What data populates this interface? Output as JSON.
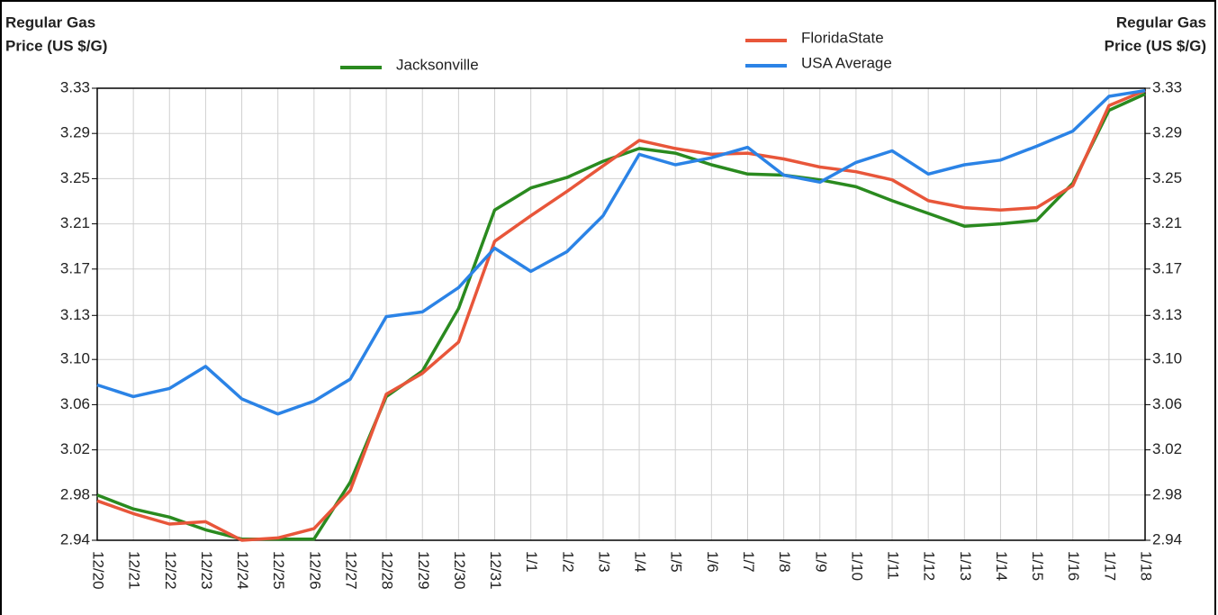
{
  "chart_data": {
    "type": "line",
    "y_label": [
      "Regular Gas",
      "Price (US $/G)"
    ],
    "y2_label": [
      "Regular Gas",
      "Price (US $/G)"
    ],
    "categories": [
      "12/20",
      "12/21",
      "12/22",
      "12/23",
      "12/24",
      "12/25",
      "12/26",
      "12/27",
      "12/28",
      "12/29",
      "12/30",
      "12/31",
      "1/1",
      "1/2",
      "1/3",
      "1/4",
      "1/5",
      "1/6",
      "1/7",
      "1/8",
      "1/9",
      "1/10",
      "1/11",
      "1/12",
      "1/13",
      "1/14",
      "1/15",
      "1/16",
      "1/17",
      "1/18"
    ],
    "series": [
      {
        "name": "Jacksonville",
        "color": "#2a8a1f",
        "values": [
          2.979,
          2.967,
          2.96,
          2.949,
          2.941,
          2.941,
          2.941,
          2.99,
          3.064,
          3.086,
          3.14,
          3.225,
          3.244,
          3.253,
          3.267,
          3.278,
          3.274,
          3.264,
          3.256,
          3.255,
          3.251,
          3.245,
          3.233,
          3.222,
          3.211,
          3.213,
          3.216,
          3.248,
          3.311,
          3.325
        ]
      },
      {
        "name": "FloridaState",
        "color": "#e8563a",
        "values": [
          2.974,
          2.963,
          2.954,
          2.956,
          2.94,
          2.942,
          2.95,
          2.983,
          3.066,
          3.084,
          3.111,
          3.198,
          3.22,
          3.241,
          3.263,
          3.285,
          3.278,
          3.273,
          3.274,
          3.269,
          3.262,
          3.258,
          3.251,
          3.233,
          3.227,
          3.225,
          3.227,
          3.246,
          3.315,
          3.328
        ]
      },
      {
        "name": "USA Average",
        "color": "#2b83e6",
        "values": [
          3.074,
          3.064,
          3.071,
          3.09,
          3.062,
          3.049,
          3.06,
          3.079,
          3.133,
          3.137,
          3.158,
          3.192,
          3.172,
          3.189,
          3.22,
          3.273,
          3.264,
          3.27,
          3.279,
          3.255,
          3.249,
          3.266,
          3.276,
          3.256,
          3.264,
          3.268,
          3.28,
          3.293,
          3.323,
          3.328
        ]
      }
    ],
    "ylim": [
      2.94,
      3.33
    ],
    "yticks": [
      2.94,
      {
        "value": 2.979,
        "label": "2.98"
      },
      {
        "value": 3.018,
        "label": "3.02"
      },
      {
        "value": 3.057,
        "label": "3.06"
      },
      {
        "value": 3.096,
        "label": "3.10"
      },
      {
        "value": 3.134,
        "label": "3.13"
      },
      {
        "value": 3.174,
        "label": "3.17"
      },
      {
        "value": 3.213,
        "label": "3.21"
      },
      {
        "value": 3.252,
        "label": "3.25"
      },
      {
        "value": 3.291,
        "label": "3.29"
      },
      3.33
    ],
    "y2lim": [
      2.94,
      3.33
    ],
    "y2ticks": [
      2.94,
      {
        "value": 2.979,
        "label": "2.98"
      },
      {
        "value": 3.018,
        "label": "3.02"
      },
      {
        "value": 3.057,
        "label": "3.06"
      },
      {
        "value": 3.096,
        "label": "3.10"
      },
      {
        "value": 3.134,
        "label": "3.13"
      },
      {
        "value": 3.174,
        "label": "3.17"
      },
      {
        "value": 3.213,
        "label": "3.21"
      },
      {
        "value": 3.252,
        "label": "3.25"
      },
      {
        "value": 3.291,
        "label": "3.29"
      },
      3.33
    ],
    "grid": true
  }
}
